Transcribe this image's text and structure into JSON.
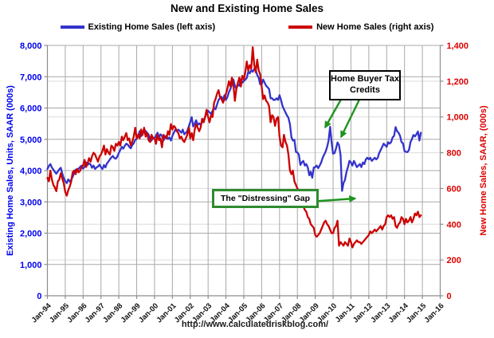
{
  "title": "New and Existing Home Sales",
  "legend": [
    {
      "label": "Existing Home Sales (left axis)",
      "color": "#3333CC"
    },
    {
      "label": "New Home Sales (right axis)",
      "color": "#CC0000"
    }
  ],
  "annotations": {
    "tax_credit": {
      "text": "Home Buyer Tax Credits"
    },
    "gap": {
      "text": "The \"Distressing\" Gap"
    }
  },
  "footer_url": "http://www.calculatedriskblog.com/",
  "colors": {
    "existing_blue": "#3333CC",
    "new_red": "#CC0000",
    "left_axis_blue": "#0000EE",
    "right_axis_red": "#DD0000",
    "grid_gray": "#A9A9A9",
    "light_grid": "#DCDCDC",
    "axis_gray": "#8C8C8C",
    "annotation_green": "#1F941F"
  },
  "chart_data": {
    "type": "line",
    "x_interval": "monthly",
    "x_start": "Jan-1994",
    "x_end": "Dec-2014",
    "grid": true,
    "legend_position": "top",
    "x_axis": {
      "tick_labels": [
        "Jan-94",
        "Jan-95",
        "Jan-96",
        "Jan-97",
        "Jan-98",
        "Jan-99",
        "Jan-00",
        "Jan-01",
        "Jan-02",
        "Jan-03",
        "Jan-04",
        "Jan-05",
        "Jan-06",
        "Jan-07",
        "Jan-08",
        "Jan-09",
        "Jan-10",
        "Jan-11",
        "Jan-12",
        "Jan-13",
        "Jan-14",
        "Jan-15",
        "Jan-16"
      ]
    },
    "y_left": {
      "label": "Existing Home Sales, Units, SAAR (000s)",
      "min": 0,
      "max": 8000,
      "step": 1000,
      "tick_labels": [
        "0",
        "1,000",
        "2,000",
        "3,000",
        "4,000",
        "5,000",
        "6,000",
        "7,000",
        "8,000"
      ]
    },
    "y_right": {
      "label": "New Home Sales, SAAR, (000s)",
      "min": 0,
      "max": 1400,
      "step": 200,
      "tick_labels": [
        "0",
        "200",
        "400",
        "600",
        "800",
        "1,000",
        "1,200",
        "1,400"
      ]
    },
    "series": [
      {
        "name": "Existing Home Sales (left axis)",
        "axis": "left",
        "color": "#3333CC",
        "data_name": "existing-home-sales-line",
        "values": [
          4050,
          4150,
          4210,
          4100,
          4030,
          3960,
          3900,
          3970,
          4040,
          4090,
          3900,
          3760,
          3660,
          3600,
          3720,
          3650,
          3710,
          3800,
          3920,
          4030,
          3980,
          4060,
          4120,
          4160,
          4060,
          4120,
          4260,
          4180,
          4230,
          4200,
          4090,
          4160,
          4050,
          4100,
          4130,
          4190,
          4110,
          4050,
          4180,
          4100,
          4230,
          4290,
          4360,
          4420,
          4470,
          4400,
          4380,
          4450,
          4560,
          4660,
          4760,
          4700,
          4790,
          4860,
          4830,
          4760,
          4710,
          4810,
          4870,
          4980,
          5010,
          5120,
          5260,
          5100,
          5160,
          5310,
          5260,
          5210,
          5150,
          5010,
          4960,
          5060,
          5020,
          5120,
          5210,
          5060,
          5160,
          5110,
          4960,
          5060,
          5110,
          5010,
          5060,
          4960,
          5110,
          5210,
          5310,
          5260,
          5310,
          5260,
          5210,
          5310,
          5160,
          5210,
          5260,
          5410,
          5560,
          5710,
          5410,
          5510,
          5610,
          5460,
          5510,
          5460,
          5560,
          5610,
          5710,
          5860,
          5910,
          5860,
          5810,
          5910,
          6010,
          5960,
          6110,
          6260,
          6310,
          6360,
          6260,
          6410,
          6260,
          6360,
          6510,
          6610,
          6760,
          6910,
          6710,
          6610,
          6760,
          6710,
          6910,
          6810,
          6860,
          6910,
          6960,
          7160,
          7110,
          7210,
          7160,
          7250,
          7210,
          7060,
          6960,
          6760,
          6760,
          6910,
          6810,
          6710,
          6660,
          6610,
          6310,
          6310,
          6260,
          6260,
          6310,
          6260,
          6410,
          6260,
          6060,
          5960,
          5860,
          5760,
          5690,
          5480,
          5060,
          4960,
          4980,
          4600,
          4580,
          4510,
          4180,
          4260,
          4310,
          4160,
          4210,
          4100,
          3850,
          3960,
          3770,
          4100,
          4110,
          4160,
          4080,
          4160,
          4260,
          4410,
          4510,
          4610,
          4760,
          4960,
          5400,
          4900,
          4540,
          4560,
          4710,
          4900,
          4810,
          4510,
          3350,
          3600,
          3710,
          3960,
          4110,
          4310,
          4260,
          4160,
          4310,
          4210,
          4110,
          4160,
          4210,
          4110,
          4260,
          4210,
          4360,
          4410,
          4360,
          4410,
          4310,
          4360,
          4410,
          4360,
          4410,
          4560,
          4660,
          4760,
          4860,
          4810,
          4760,
          4910,
          4860,
          4910,
          5060,
          5110,
          5390,
          5260,
          5210,
          5110,
          4910,
          4870,
          4620,
          4600,
          4590,
          4660,
          4910,
          5010,
          5140,
          5090,
          5160,
          5250,
          4960,
          5210
        ]
      },
      {
        "name": "New Home Sales (right axis)",
        "axis": "right",
        "color": "#CC0000",
        "data_name": "new-home-sales-line",
        "values": [
          660,
          640,
          700,
          650,
          620,
          605,
          585,
          640,
          650,
          685,
          655,
          630,
          580,
          560,
          590,
          610,
          640,
          690,
          700,
          680,
          710,
          690,
          700,
          720,
          730,
          760,
          720,
          740,
          770,
          750,
          780,
          800,
          790,
          770,
          750,
          780,
          790,
          810,
          840,
          790,
          820,
          800,
          790,
          840,
          830,
          810,
          850,
          840,
          860,
          840,
          890,
          870,
          890,
          910,
          870,
          880,
          840,
          860,
          890,
          940,
          880,
          900,
          880,
          930,
          900,
          940,
          890,
          910,
          870,
          860,
          900,
          880,
          880,
          850,
          900,
          870,
          880,
          830,
          900,
          890,
          880,
          920,
          900,
          960,
          930,
          950,
          940,
          920,
          910,
          880,
          890,
          870,
          860,
          880,
          900,
          940,
          880,
          910,
          870,
          930,
          960,
          940,
          920,
          940,
          990,
          970,
          1000,
          1040,
          1000,
          970,
          1010,
          1000,
          1080,
          1100,
          1130,
          1150,
          1110,
          1100,
          1080,
          1100,
          1130,
          1160,
          1200,
          1170,
          1220,
          1180,
          1090,
          1160,
          1190,
          1220,
          1170,
          1230,
          1210,
          1250,
          1310,
          1260,
          1290,
          1270,
          1390,
          1290,
          1250,
          1320,
          1260,
          1240,
          1170,
          1100,
          1120,
          1090,
          1080,
          1060,
          970,
          1010,
          1000,
          950,
          990,
          1000,
          890,
          840,
          830,
          900,
          860,
          840,
          790,
          700,
          680,
          700,
          640,
          620,
          600,
          590,
          530,
          540,
          500,
          480,
          470,
          440,
          430,
          400,
          390,
          380,
          340,
          330,
          340,
          350,
          370,
          390,
          410,
          420,
          400,
          390,
          370,
          350,
          350,
          380,
          390,
          420,
          280,
          300,
          290,
          280,
          300,
          290,
          280,
          320,
          300,
          270,
          290,
          300,
          310,
          300,
          300,
          290,
          300,
          310,
          320,
          330,
          340,
          360,
          350,
          360,
          370,
          360,
          370,
          380,
          390,
          370,
          390,
          400,
          440,
          450,
          440,
          450,
          430,
          440,
          390,
          380,
          400,
          410,
          440,
          430,
          400,
          430,
          410,
          420,
          440,
          410,
          430,
          460,
          450,
          470,
          440,
          450
        ]
      }
    ]
  }
}
